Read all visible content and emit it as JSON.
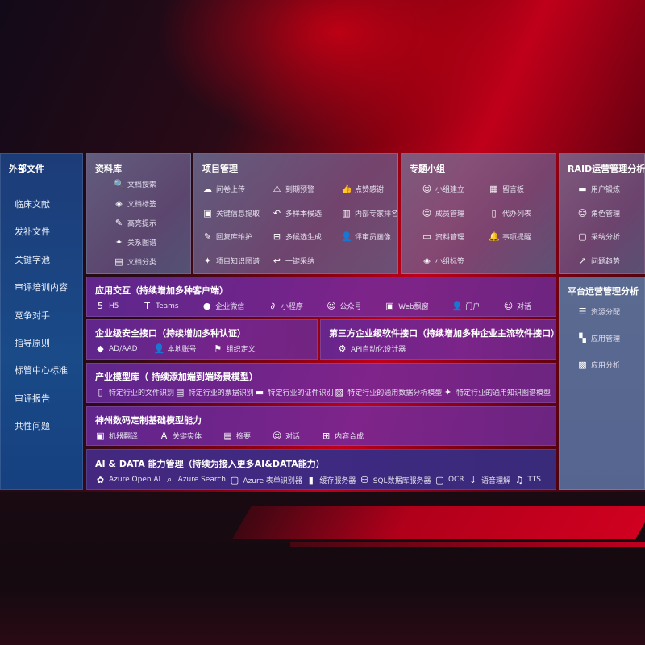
{
  "external": {
    "title": "外部文件",
    "items": [
      "临床文献",
      "发补文件",
      "关键字池",
      "审评培训内容",
      "竞争对手",
      "指导原则",
      "标管中心标准",
      "审评报告",
      "共性问题"
    ]
  },
  "library": {
    "title": "资料库",
    "items": [
      {
        "label": "文档搜索",
        "icon": "document-search-icon"
      },
      {
        "label": "文档标签",
        "icon": "tag-icon"
      },
      {
        "label": "高亮提示",
        "icon": "pen-icon"
      },
      {
        "label": "关系图谱",
        "icon": "graph-icon"
      },
      {
        "label": "文档分类",
        "icon": "documents-icon"
      }
    ]
  },
  "project": {
    "title": "项目管理",
    "items": [
      {
        "label": "问卷上传",
        "icon": "cloud-upload-icon"
      },
      {
        "label": "到期预警",
        "icon": "alarm-icon"
      },
      {
        "label": "点赞感谢",
        "icon": "thumbs-up-icon"
      },
      {
        "label": "关键信息提取",
        "icon": "window-icon"
      },
      {
        "label": "多样本候选",
        "icon": "reply-all-icon"
      },
      {
        "label": "内部专家排名",
        "icon": "ranking-icon"
      },
      {
        "label": "回复库维护",
        "icon": "edit-icon"
      },
      {
        "label": "多候选生成",
        "icon": "puzzle-icon"
      },
      {
        "label": "评审员画像",
        "icon": "user-icon"
      },
      {
        "label": "项目知识图谱",
        "icon": "graph-icon"
      },
      {
        "label": "一键采纳",
        "icon": "reply-icon"
      }
    ]
  },
  "group": {
    "title": "专题小组",
    "items": [
      {
        "label": "小组建立",
        "icon": "group-icon"
      },
      {
        "label": "留言板",
        "icon": "bbs-icon"
      },
      {
        "label": "成员管理",
        "icon": "user-add-icon"
      },
      {
        "label": "代办列表",
        "icon": "clipboard-icon"
      },
      {
        "label": "资料管理",
        "icon": "folder-icon"
      },
      {
        "label": "事项提醒",
        "icon": "bell-icon"
      },
      {
        "label": "小组标签",
        "icon": "tag-icon"
      }
    ]
  },
  "raid": {
    "title": "RAID运营管理分析",
    "items": [
      {
        "label": "用户锻炼",
        "icon": "id-card-icon"
      },
      {
        "label": "角色管理",
        "icon": "users-icon"
      },
      {
        "label": "采纳分析",
        "icon": "qa-icon"
      },
      {
        "label": "问题趋势",
        "icon": "trend-icon"
      }
    ]
  },
  "platform": {
    "title": "平台运营管理分析",
    "items": [
      {
        "label": "资源分配",
        "icon": "list-icon"
      },
      {
        "label": "应用管理",
        "icon": "apps-icon"
      },
      {
        "label": "应用分析",
        "icon": "analysis-icon"
      }
    ]
  },
  "interaction": {
    "title": "应用交互（持续增加多种客户端）",
    "items": [
      {
        "label": "H5",
        "icon": "html5-icon"
      },
      {
        "label": "Teams",
        "icon": "teams-icon"
      },
      {
        "label": "企业微信",
        "icon": "wechat-icon"
      },
      {
        "label": "小程序",
        "icon": "miniprogram-icon"
      },
      {
        "label": "公众号",
        "icon": "users-icon"
      },
      {
        "label": "Web飘窗",
        "icon": "window-icon"
      },
      {
        "label": "门户",
        "icon": "portal-icon"
      },
      {
        "label": "对话",
        "icon": "chat-icon"
      }
    ]
  },
  "security": {
    "title": "企业级安全接口（持续增加多种认证）",
    "items": [
      {
        "label": "AD/AAD",
        "icon": "ad-icon"
      },
      {
        "label": "本地账号",
        "icon": "account-icon"
      },
      {
        "label": "组织定义",
        "icon": "org-icon"
      }
    ]
  },
  "thirdparty": {
    "title": "第三方企业级软件接口（持续增加多种企业主流软件接口）",
    "items": [
      {
        "label": "API自动化设计器",
        "icon": "gear-icon"
      }
    ]
  },
  "industry": {
    "title": "产业模型库（ 持续添加端到端场景模型）",
    "items": [
      {
        "label": "特定行业的文件识别",
        "icon": "file-icon"
      },
      {
        "label": "特定行业的票据识别",
        "icon": "receipt-icon"
      },
      {
        "label": "特定行业的证件识别",
        "icon": "id-card-icon"
      },
      {
        "label": "特定行业的通用数据分析模型",
        "icon": "chart-icon"
      },
      {
        "label": "特定行业的通用知识图谱模型",
        "icon": "graph-icon"
      }
    ]
  },
  "foundation": {
    "title": "神州数码定制基础模型能力",
    "items": [
      {
        "label": "机器翻译",
        "icon": "translate-icon"
      },
      {
        "label": "关键实体",
        "icon": "entity-icon"
      },
      {
        "label": "摘要",
        "icon": "summary-icon"
      },
      {
        "label": "对话",
        "icon": "chat-icon"
      },
      {
        "label": "内容合成",
        "icon": "puzzle-icon"
      }
    ]
  },
  "aidata": {
    "title": "AI & DATA 能力管理（持续为接入更多AI&DATA能力）",
    "items": [
      {
        "label": "Azure Open AI",
        "icon": "openai-icon"
      },
      {
        "label": "Azure Search",
        "icon": "search-icon"
      },
      {
        "label": "Azure 表单识别器",
        "icon": "form-icon"
      },
      {
        "label": "缓存服务器",
        "icon": "cache-icon"
      },
      {
        "label": "SQL数据库服务器",
        "icon": "database-icon"
      },
      {
        "label": "OCR",
        "icon": "ocr-icon"
      },
      {
        "label": "语音理解",
        "icon": "speech-icon"
      },
      {
        "label": "TTS",
        "icon": "tts-icon"
      }
    ]
  }
}
